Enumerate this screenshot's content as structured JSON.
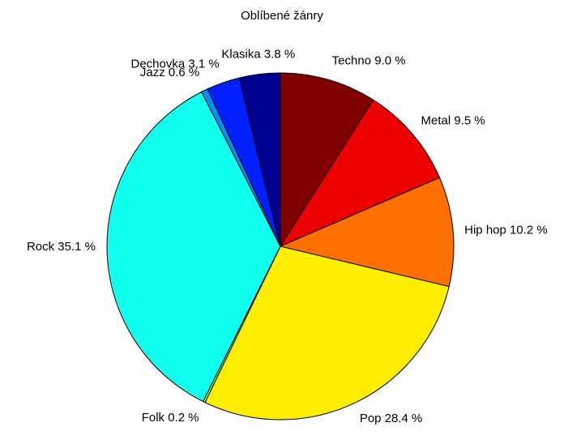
{
  "chart_data": {
    "type": "pie",
    "title": "Oblíbené žánry",
    "categories": [
      "Techno",
      "Metal",
      "Hip hop",
      "Pop",
      "Folk",
      "Rock",
      "Jazz",
      "Dechovka",
      "Klasika"
    ],
    "values": [
      9.0,
      9.5,
      10.2,
      28.4,
      0.2,
      35.1,
      0.6,
      3.1,
      3.8
    ],
    "value_labels": [
      "9.0 %",
      "9.5 %",
      "10.2 %",
      "28.4 %",
      "0.2 %",
      "35.1 %",
      "0.6 %",
      "3.1 %",
      "3.8 %"
    ],
    "colors": [
      "#800000",
      "#ee0000",
      "#ff7000",
      "#ffee00",
      "#80ff80",
      "#10ffee",
      "#0090ff",
      "#0020ff",
      "#000090"
    ]
  }
}
